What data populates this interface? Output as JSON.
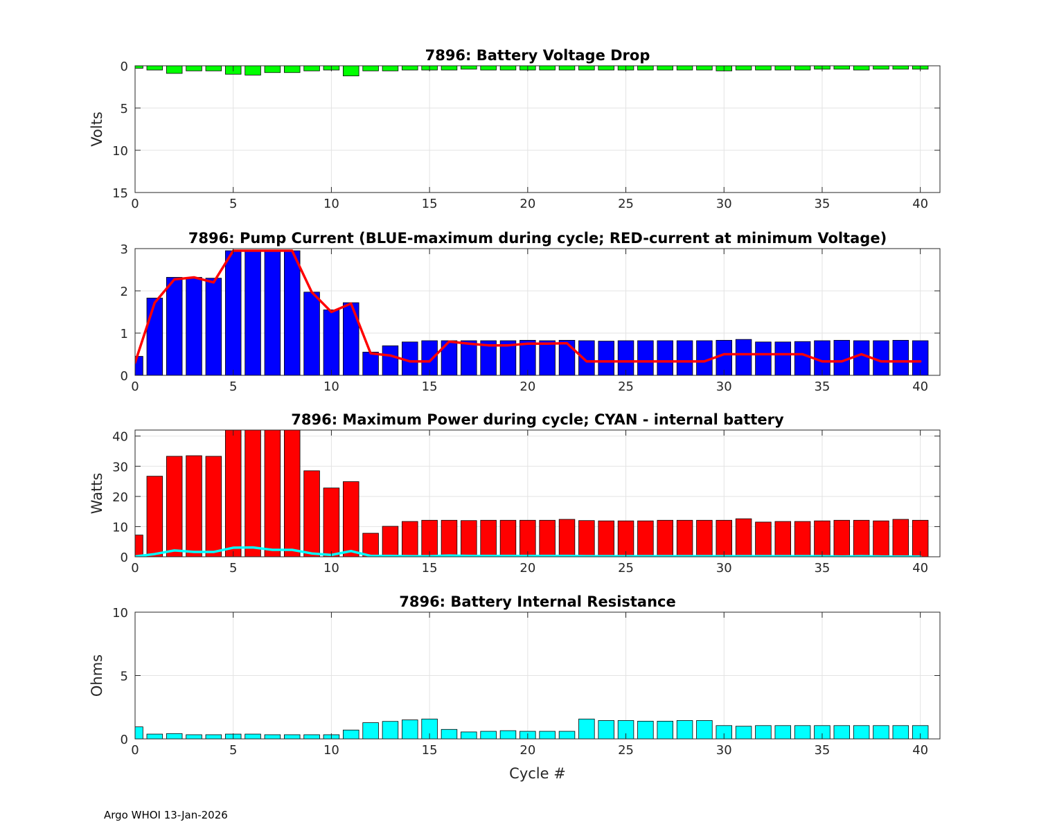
{
  "footer": "Argo WHOI 13-Jan-2026",
  "colors": {
    "grid": "#e3e3e3",
    "axis": "#262626"
  },
  "chart_data": [
    {
      "id": "voltage",
      "type": "bar",
      "title": "7896: Battery Voltage Drop",
      "ylabel": "Volts",
      "xlabel": "",
      "xlim": [
        0,
        41
      ],
      "ylim": [
        0,
        15
      ],
      "yreverse": true,
      "xticks": [
        0,
        5,
        10,
        15,
        20,
        25,
        30,
        35,
        40
      ],
      "yticks": [
        0,
        5,
        10,
        15
      ],
      "x": [
        0,
        1,
        2,
        3,
        4,
        5,
        6,
        7,
        8,
        9,
        10,
        11,
        12,
        13,
        14,
        15,
        16,
        17,
        18,
        19,
        20,
        21,
        22,
        23,
        24,
        25,
        26,
        27,
        28,
        29,
        30,
        31,
        32,
        33,
        34,
        35,
        36,
        37,
        38,
        39,
        40
      ],
      "series": [
        {
          "name": "Voltage drop",
          "kind": "bar",
          "color": "#00ff00",
          "values": [
            0.3,
            0.5,
            0.9,
            0.6,
            0.6,
            1.0,
            1.1,
            0.8,
            0.8,
            0.6,
            0.5,
            1.2,
            0.6,
            0.6,
            0.5,
            0.5,
            0.5,
            0.4,
            0.5,
            0.5,
            0.5,
            0.5,
            0.5,
            0.5,
            0.5,
            0.5,
            0.5,
            0.5,
            0.5,
            0.5,
            0.6,
            0.5,
            0.5,
            0.5,
            0.5,
            0.4,
            0.4,
            0.5,
            0.4,
            0.4,
            0.4
          ]
        }
      ]
    },
    {
      "id": "current",
      "type": "bar",
      "title": "7896: Pump Current (BLUE-maximum during cycle; RED-current at minimum Voltage)",
      "ylabel": "",
      "xlabel": "",
      "xlim": [
        0,
        41
      ],
      "ylim": [
        0,
        3
      ],
      "yreverse": false,
      "xticks": [
        0,
        5,
        10,
        15,
        20,
        25,
        30,
        35,
        40
      ],
      "yticks": [
        0,
        1,
        2,
        3
      ],
      "x": [
        0,
        1,
        2,
        3,
        4,
        5,
        6,
        7,
        8,
        9,
        10,
        11,
        12,
        13,
        14,
        15,
        16,
        17,
        18,
        19,
        20,
        21,
        22,
        23,
        24,
        25,
        26,
        27,
        28,
        29,
        30,
        31,
        32,
        33,
        34,
        35,
        36,
        37,
        38,
        39,
        40
      ],
      "series": [
        {
          "name": "Maximum current",
          "kind": "bar",
          "color": "#0000ff",
          "values": [
            0.45,
            1.83,
            2.32,
            2.32,
            2.3,
            2.95,
            2.95,
            2.95,
            2.95,
            1.97,
            1.55,
            1.72,
            0.55,
            0.7,
            0.79,
            0.82,
            0.82,
            0.82,
            0.82,
            0.82,
            0.83,
            0.82,
            0.83,
            0.82,
            0.81,
            0.82,
            0.82,
            0.82,
            0.82,
            0.82,
            0.83,
            0.85,
            0.79,
            0.79,
            0.8,
            0.82,
            0.83,
            0.82,
            0.82,
            0.83,
            0.82
          ]
        },
        {
          "name": "Current at minimum voltage",
          "kind": "line",
          "color": "#ff0000",
          "values": [
            0.3,
            1.72,
            2.27,
            2.32,
            2.2,
            2.95,
            2.95,
            2.95,
            2.95,
            1.97,
            1.5,
            1.7,
            0.52,
            0.47,
            0.33,
            0.33,
            0.8,
            0.75,
            0.71,
            0.71,
            0.75,
            0.75,
            0.76,
            0.33,
            0.33,
            0.33,
            0.33,
            0.33,
            0.33,
            0.33,
            0.5,
            0.5,
            0.5,
            0.5,
            0.5,
            0.33,
            0.33,
            0.5,
            0.33,
            0.33,
            0.33
          ]
        }
      ]
    },
    {
      "id": "power",
      "type": "bar",
      "title": "7896: Maximum Power during cycle; CYAN - internal battery",
      "ylabel": "Watts",
      "xlabel": "",
      "xlim": [
        0,
        41
      ],
      "ylim": [
        0,
        42
      ],
      "yreverse": false,
      "xticks": [
        0,
        5,
        10,
        15,
        20,
        25,
        30,
        35,
        40
      ],
      "yticks": [
        0,
        10,
        20,
        30,
        40
      ],
      "x": [
        0,
        1,
        2,
        3,
        4,
        5,
        6,
        7,
        8,
        9,
        10,
        11,
        12,
        13,
        14,
        15,
        16,
        17,
        18,
        19,
        20,
        21,
        22,
        23,
        24,
        25,
        26,
        27,
        28,
        29,
        30,
        31,
        32,
        33,
        34,
        35,
        36,
        37,
        38,
        39,
        40
      ],
      "series": [
        {
          "name": "Maximum power",
          "kind": "bar",
          "color": "#ff0000",
          "values": [
            7.2,
            26.7,
            33.3,
            33.5,
            33.3,
            42,
            42,
            42,
            42,
            28.5,
            22.8,
            24.9,
            7.8,
            10.1,
            11.7,
            12.1,
            12.1,
            12.0,
            12.1,
            12.1,
            12.1,
            12.1,
            12.4,
            12.0,
            11.9,
            11.9,
            11.9,
            12.1,
            12.1,
            12.1,
            12.1,
            12.6,
            11.5,
            11.7,
            11.7,
            11.9,
            12.1,
            12.1,
            11.9,
            12.4,
            12.1
          ]
        },
        {
          "name": "Internal battery power",
          "kind": "line",
          "color": "#00ffff",
          "values": [
            0.1,
            0.9,
            2.1,
            1.6,
            1.6,
            3.0,
            3.1,
            2.3,
            2.3,
            1.1,
            0.6,
            1.9,
            0.3,
            0.3,
            0.2,
            0.2,
            0.4,
            0.3,
            0.3,
            0.3,
            0.3,
            0.3,
            0.3,
            0.2,
            0.2,
            0.2,
            0.2,
            0.2,
            0.2,
            0.2,
            0.2,
            0.2,
            0.2,
            0.2,
            0.2,
            0.2,
            0.1,
            0.2,
            0.1,
            0.1,
            0.1
          ]
        }
      ]
    },
    {
      "id": "resistance",
      "type": "bar",
      "title": "7896: Battery Internal Resistance",
      "ylabel": "Ohms",
      "xlabel": "Cycle #",
      "xlim": [
        0,
        41
      ],
      "ylim": [
        0,
        10
      ],
      "yreverse": false,
      "xticks": [
        0,
        5,
        10,
        15,
        20,
        25,
        30,
        35,
        40
      ],
      "yticks": [
        0,
        5,
        10
      ],
      "x": [
        0,
        1,
        2,
        3,
        4,
        5,
        6,
        7,
        8,
        9,
        10,
        11,
        12,
        13,
        14,
        15,
        16,
        17,
        18,
        19,
        20,
        21,
        22,
        23,
        24,
        25,
        26,
        27,
        28,
        29,
        30,
        31,
        32,
        33,
        34,
        35,
        36,
        37,
        38,
        39,
        40
      ],
      "series": [
        {
          "name": "Internal resistance",
          "kind": "bar",
          "color": "#00ffff",
          "values": [
            0.95,
            0.38,
            0.42,
            0.33,
            0.33,
            0.38,
            0.38,
            0.33,
            0.33,
            0.33,
            0.33,
            0.7,
            1.28,
            1.38,
            1.5,
            1.57,
            0.75,
            0.55,
            0.6,
            0.65,
            0.6,
            0.6,
            0.6,
            1.57,
            1.45,
            1.45,
            1.4,
            1.4,
            1.45,
            1.45,
            1.05,
            1.0,
            1.05,
            1.05,
            1.05,
            1.05,
            1.05,
            1.05,
            1.05,
            1.05,
            1.05
          ]
        }
      ]
    }
  ]
}
